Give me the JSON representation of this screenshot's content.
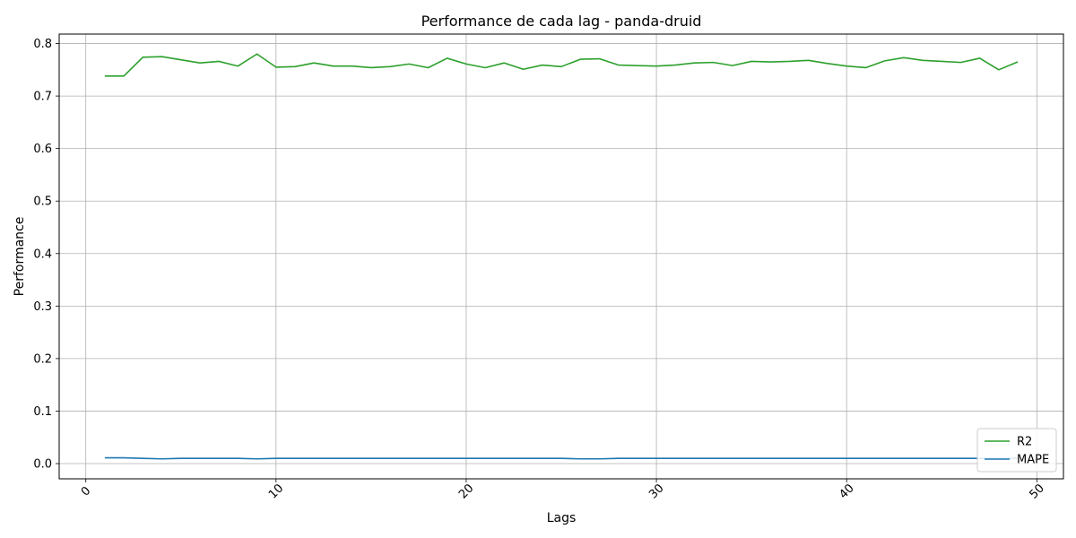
{
  "chart_data": {
    "type": "line",
    "title": "Performance de cada lag - panda-druid",
    "xlabel": "Lags",
    "ylabel": "Performance",
    "xlim": [
      -1.4,
      51.4
    ],
    "ylim": [
      -0.029,
      0.818
    ],
    "xticks": [
      0,
      10,
      20,
      30,
      40,
      50
    ],
    "xtick_labels": [
      "0",
      "10",
      "20",
      "30",
      "40",
      "50"
    ],
    "xtick_rotation": -45,
    "yticks": [
      0.0,
      0.1,
      0.2,
      0.3,
      0.4,
      0.5,
      0.6,
      0.7,
      0.8
    ],
    "ytick_labels": [
      "0.0",
      "0.1",
      "0.2",
      "0.3",
      "0.4",
      "0.5",
      "0.6",
      "0.7",
      "0.8"
    ],
    "grid": true,
    "legend_position": "lower right",
    "x": [
      1,
      2,
      3,
      4,
      5,
      6,
      7,
      8,
      9,
      10,
      11,
      12,
      13,
      14,
      15,
      16,
      17,
      18,
      19,
      20,
      21,
      22,
      23,
      24,
      25,
      26,
      27,
      28,
      29,
      30,
      31,
      32,
      33,
      34,
      35,
      36,
      37,
      38,
      39,
      40,
      41,
      42,
      43,
      44,
      45,
      46,
      47,
      48,
      49
    ],
    "series": [
      {
        "name": "R2",
        "color": "#2ca02c",
        "values": [
          0.738,
          0.738,
          0.774,
          0.775,
          0.769,
          0.763,
          0.766,
          0.757,
          0.78,
          0.755,
          0.756,
          0.763,
          0.757,
          0.757,
          0.754,
          0.756,
          0.761,
          0.754,
          0.772,
          0.761,
          0.754,
          0.763,
          0.751,
          0.759,
          0.756,
          0.77,
          0.771,
          0.759,
          0.758,
          0.757,
          0.759,
          0.763,
          0.764,
          0.758,
          0.766,
          0.765,
          0.766,
          0.768,
          0.762,
          0.757,
          0.754,
          0.767,
          0.773,
          0.768,
          0.766,
          0.764,
          0.772,
          0.75,
          0.765
        ]
      },
      {
        "name": "MAPE",
        "color": "#1f77b4",
        "values": [
          0.011,
          0.011,
          0.01,
          0.009,
          0.01,
          0.01,
          0.01,
          0.01,
          0.009,
          0.01,
          0.01,
          0.01,
          0.01,
          0.01,
          0.01,
          0.01,
          0.01,
          0.01,
          0.01,
          0.01,
          0.01,
          0.01,
          0.01,
          0.01,
          0.01,
          0.009,
          0.009,
          0.01,
          0.01,
          0.01,
          0.01,
          0.01,
          0.01,
          0.01,
          0.01,
          0.01,
          0.01,
          0.01,
          0.01,
          0.01,
          0.01,
          0.01,
          0.01,
          0.01,
          0.01,
          0.01,
          0.01,
          0.01,
          0.01
        ]
      }
    ]
  }
}
